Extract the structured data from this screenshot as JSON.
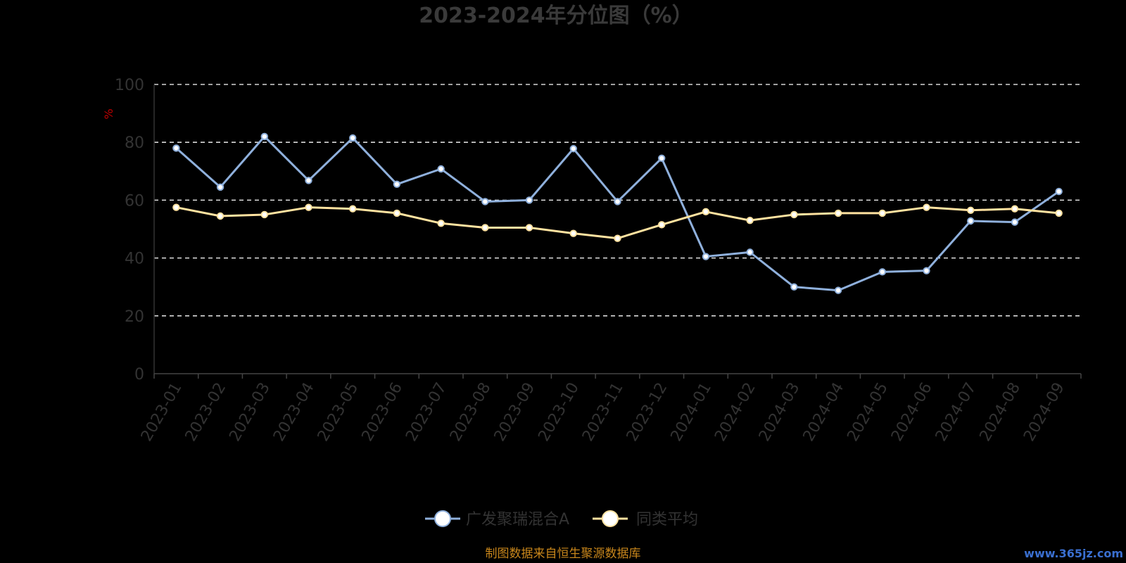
{
  "chart_data": {
    "type": "line",
    "title": "2023-2024年分位图（%）",
    "ylabel": "%",
    "ylim": [
      0,
      100
    ],
    "y_ticks": [
      "0",
      "20",
      "40",
      "60",
      "80",
      "100"
    ],
    "y_tick_values": [
      0,
      20,
      40,
      60,
      80,
      100
    ],
    "categories": [
      "2023-01",
      "2023-02",
      "2023-03",
      "2023-04",
      "2023-05",
      "2023-06",
      "2023-07",
      "2023-08",
      "2023-09",
      "2023-10",
      "2023-11",
      "2023-12",
      "2024-01",
      "2024-02",
      "2024-03",
      "2024-04",
      "2024-05",
      "2024-06",
      "2024-07",
      "2024-08",
      "2024-09"
    ],
    "grid": true,
    "legend_position": "bottom",
    "series": [
      {
        "name": "广发聚瑞混合A",
        "color": "#8fb0dc",
        "values": [
          78.0,
          64.5,
          82.0,
          66.8,
          81.5,
          65.5,
          70.8,
          59.5,
          60.0,
          77.8,
          59.5,
          74.5,
          40.5,
          42.0,
          30.0,
          28.8,
          35.2,
          35.6,
          52.8,
          52.4,
          63.0
        ]
      },
      {
        "name": "同类平均",
        "color": "#ffe2a0",
        "values": [
          57.5,
          54.5,
          55.0,
          57.5,
          57.0,
          55.5,
          52.0,
          50.5,
          50.5,
          48.5,
          46.8,
          51.5,
          56.0,
          53.0,
          55.0,
          55.5,
          55.5,
          57.5,
          56.5,
          57.0,
          55.5
        ]
      }
    ],
    "source_note": "制图数据来自恒生聚源数据库",
    "watermark": "www.365jz.com"
  }
}
